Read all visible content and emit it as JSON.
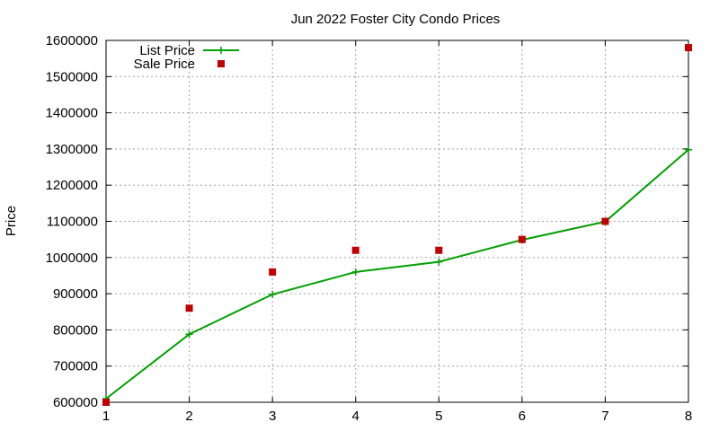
{
  "chart_data": {
    "type": "line",
    "title": "Jun 2022 Foster City Condo Prices",
    "xlabel": "",
    "ylabel": "Price",
    "xlim": [
      1,
      8
    ],
    "ylim": [
      600000,
      1600000
    ],
    "xticks": [
      1,
      2,
      3,
      4,
      5,
      6,
      7,
      8
    ],
    "yticks": [
      600000,
      700000,
      800000,
      900000,
      1000000,
      1100000,
      1200000,
      1300000,
      1400000,
      1500000,
      1600000
    ],
    "grid": true,
    "legend_position": "top-left",
    "series": [
      {
        "name": "List Price",
        "style": "line-with-plus-markers",
        "color": "#00a000",
        "x": [
          1,
          2,
          3,
          4,
          5,
          6,
          7,
          8
        ],
        "values": [
          610000,
          788000,
          898000,
          960000,
          988000,
          1049000,
          1099000,
          1298000
        ]
      },
      {
        "name": "Sale Price",
        "style": "square-points",
        "color": "#c00000",
        "x": [
          1,
          2,
          3,
          4,
          5,
          6,
          7,
          8
        ],
        "values": [
          600000,
          860000,
          960000,
          1020000,
          1020000,
          1050000,
          1100000,
          1580000
        ]
      }
    ]
  }
}
